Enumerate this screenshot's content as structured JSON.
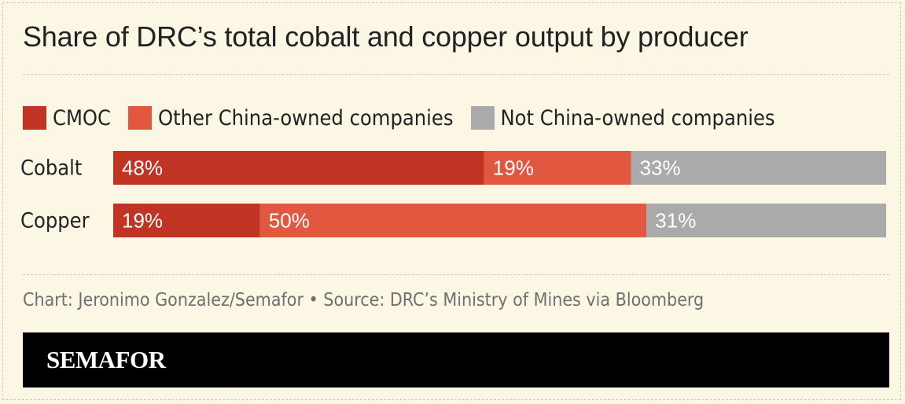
{
  "title": "Share of DRC’s total cobalt and copper output by producer",
  "caption": "Chart: Jeronimo Gonzalez/Semafor • Source: DRC’s Ministry of Mines via Bloomberg",
  "brand": "SEMAFOR",
  "colors": {
    "background": "#fbf7e4",
    "cmoc": "#c13423",
    "other_china": "#e2573f",
    "not_china": "#aaaaaa",
    "footer": "#000000"
  },
  "chart_data": {
    "type": "bar",
    "orientation": "horizontal",
    "stacked": true,
    "categories": [
      "Cobalt",
      "Copper"
    ],
    "series": [
      {
        "name": "CMOC",
        "values": [
          48,
          19
        ],
        "labels": [
          "48%",
          "19%"
        ]
      },
      {
        "name": "Other China-owned companies",
        "values": [
          19,
          50
        ],
        "labels": [
          "19%",
          "50%"
        ]
      },
      {
        "name": "Not China-owned companies",
        "values": [
          33,
          31
        ],
        "labels": [
          "33%",
          "31%"
        ]
      }
    ],
    "xlim": [
      0,
      100
    ],
    "legend_position": "top-left",
    "grid": false
  }
}
